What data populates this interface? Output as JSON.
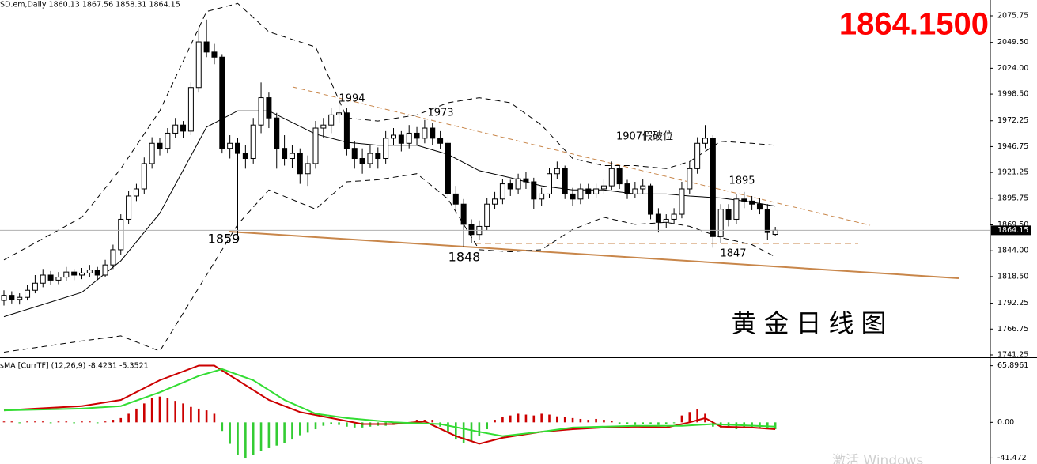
{
  "chart_data": [
    {
      "type": "candlestick",
      "header": "SD.em,Daily  1860.13 1867.56 1858.31 1864.15",
      "price_display": "1864.1500",
      "watermark": "黄金日线图",
      "last_price": 1864.15,
      "annotations": [
        "1994",
        "1973",
        "1907假破位",
        "1895",
        "1859",
        "1848",
        "1847"
      ],
      "up_color": "#ffffff",
      "down_color": "#000000",
      "ylim": [
        1738.9,
        2091.35
      ],
      "yticks": [
        2075.75,
        {
          "value": 2049.5,
          "label": "2049.50"
        },
        {
          "value": 2024,
          "label": "2024.00"
        },
        {
          "value": 1998.5,
          "label": "1998.50"
        },
        1972.25,
        1946.75,
        1921.25,
        1895.75,
        {
          "value": 1869.5,
          "label": "1869.50"
        },
        {
          "value": 1844,
          "label": "1844.00"
        },
        {
          "value": 1818.5,
          "label": "1818.50"
        },
        1792.25,
        1766.75,
        1741.25
      ],
      "ohlc": [
        [
          1795,
          1805,
          1790,
          1800
        ],
        [
          1800,
          1804,
          1792,
          1796
        ],
        [
          1796,
          1802,
          1791,
          1798
        ],
        [
          1798,
          1810,
          1795,
          1805
        ],
        [
          1805,
          1820,
          1802,
          1812
        ],
        [
          1812,
          1826,
          1808,
          1820
        ],
        [
          1820,
          1824,
          1810,
          1815
        ],
        [
          1815,
          1823,
          1811,
          1818
        ],
        [
          1818,
          1828,
          1814,
          1823
        ],
        [
          1823,
          1826,
          1815,
          1820
        ],
        [
          1820,
          1827,
          1816,
          1822
        ],
        [
          1822,
          1830,
          1818,
          1825
        ],
        [
          1825,
          1828,
          1815,
          1820
        ],
        [
          1820,
          1835,
          1818,
          1830
        ],
        [
          1830,
          1850,
          1826,
          1845
        ],
        [
          1845,
          1880,
          1840,
          1875
        ],
        [
          1875,
          1903,
          1870,
          1898
        ],
        [
          1898,
          1910,
          1893,
          1905
        ],
        [
          1905,
          1936,
          1900,
          1930
        ],
        [
          1930,
          1956,
          1925,
          1950
        ],
        [
          1950,
          1955,
          1938,
          1945
        ],
        [
          1945,
          1965,
          1940,
          1960
        ],
        [
          1960,
          1975,
          1955,
          1968
        ],
        [
          1968,
          1972,
          1955,
          1962
        ],
        [
          1962,
          2010,
          1958,
          2005
        ],
        [
          2005,
          2063,
          2000,
          2050
        ],
        [
          2050,
          2072,
          2035,
          2040
        ],
        [
          2040,
          2048,
          2028,
          2035
        ],
        [
          2035,
          2038,
          1940,
          1945
        ],
        [
          1945,
          1958,
          1935,
          1950
        ],
        [
          1950,
          1955,
          1859,
          1940
        ],
        [
          1940,
          1948,
          1925,
          1935
        ],
        [
          1935,
          1975,
          1930,
          1968
        ],
        [
          1968,
          2010,
          1960,
          1995
        ],
        [
          1995,
          2000,
          1965,
          1975
        ],
        [
          1975,
          1980,
          1925,
          1945
        ],
        [
          1945,
          1958,
          1928,
          1935
        ],
        [
          1935,
          1948,
          1926,
          1940
        ],
        [
          1940,
          1945,
          1910,
          1920
        ],
        [
          1920,
          1938,
          1908,
          1930
        ],
        [
          1930,
          1972,
          1925,
          1965
        ],
        [
          1965,
          1975,
          1955,
          1968
        ],
        [
          1968,
          1985,
          1960,
          1978
        ],
        [
          1978,
          1994,
          1970,
          1980
        ],
        [
          1980,
          1985,
          1938,
          1945
        ],
        [
          1945,
          1952,
          1925,
          1935
        ],
        [
          1935,
          1945,
          1920,
          1930
        ],
        [
          1930,
          1948,
          1926,
          1940
        ],
        [
          1940,
          1946,
          1925,
          1935
        ],
        [
          1935,
          1962,
          1930,
          1955
        ],
        [
          1955,
          1965,
          1948,
          1958
        ],
        [
          1958,
          1962,
          1942,
          1950
        ],
        [
          1950,
          1968,
          1945,
          1960
        ],
        [
          1960,
          1966,
          1948,
          1955
        ],
        [
          1955,
          1973,
          1950,
          1965
        ],
        [
          1965,
          1970,
          1948,
          1955
        ],
        [
          1955,
          1962,
          1944,
          1950
        ],
        [
          1950,
          1953,
          1895,
          1900
        ],
        [
          1900,
          1908,
          1882,
          1890
        ],
        [
          1890,
          1895,
          1848,
          1870
        ],
        [
          1870,
          1875,
          1852,
          1860
        ],
        [
          1860,
          1874,
          1855,
          1868
        ],
        [
          1868,
          1896,
          1864,
          1890
        ],
        [
          1890,
          1902,
          1885,
          1895
        ],
        [
          1895,
          1915,
          1890,
          1910
        ],
        [
          1910,
          1914,
          1898,
          1905
        ],
        [
          1905,
          1920,
          1900,
          1915
        ],
        [
          1915,
          1922,
          1905,
          1912
        ],
        [
          1912,
          1916,
          1885,
          1895
        ],
        [
          1895,
          1906,
          1888,
          1900
        ],
        [
          1900,
          1926,
          1896,
          1920
        ],
        [
          1920,
          1932,
          1915,
          1925
        ],
        [
          1925,
          1928,
          1895,
          1900
        ],
        [
          1900,
          1906,
          1888,
          1895
        ],
        [
          1895,
          1910,
          1890,
          1905
        ],
        [
          1905,
          1910,
          1895,
          1900
        ],
        [
          1900,
          1910,
          1896,
          1905
        ],
        [
          1905,
          1915,
          1900,
          1908
        ],
        [
          1908,
          1932,
          1904,
          1925
        ],
        [
          1925,
          1928,
          1905,
          1910
        ],
        [
          1910,
          1914,
          1895,
          1900
        ],
        [
          1900,
          1912,
          1896,
          1905
        ],
        [
          1905,
          1915,
          1900,
          1908
        ],
        [
          1908,
          1910,
          1875,
          1880
        ],
        [
          1880,
          1886,
          1862,
          1872
        ],
        [
          1872,
          1880,
          1866,
          1875
        ],
        [
          1875,
          1886,
          1870,
          1880
        ],
        [
          1880,
          1912,
          1876,
          1905
        ],
        [
          1905,
          1932,
          1900,
          1925
        ],
        [
          1925,
          1956,
          1920,
          1950
        ],
        [
          1950,
          1968,
          1945,
          1955
        ],
        [
          1955,
          1958,
          1847,
          1858
        ],
        [
          1858,
          1890,
          1852,
          1885
        ],
        [
          1885,
          1890,
          1868,
          1875
        ],
        [
          1875,
          1900,
          1870,
          1895
        ],
        [
          1895,
          1902,
          1886,
          1893
        ],
        [
          1893,
          1898,
          1884,
          1890
        ],
        [
          1890,
          1896,
          1880,
          1885
        ],
        [
          1885,
          1890,
          1855,
          1862
        ],
        [
          1860.13,
          1867.56,
          1858.31,
          1864.15
        ]
      ],
      "bands": [
        {
          "color": "#000000",
          "dash": true,
          "x": [
            0,
            10,
            15,
            20,
            26,
            30,
            34,
            40,
            44,
            48,
            53,
            57,
            61,
            65,
            69,
            73,
            77,
            81,
            85,
            88,
            92,
            96,
            99
          ],
          "values": [
            1835,
            1877,
            1925,
            1982,
            2080,
            2088,
            2060,
            2045,
            1975,
            1972,
            1978,
            1990,
            1995,
            1990,
            1968,
            1935,
            1928,
            1928,
            1925,
            1932,
            1952,
            1950,
            1948
          ]
        },
        {
          "color": "#000000",
          "dash": false,
          "x": [
            0,
            10,
            15,
            20,
            26,
            30,
            34,
            40,
            44,
            48,
            53,
            57,
            61,
            65,
            69,
            73,
            77,
            81,
            85,
            88,
            92,
            96,
            99
          ],
          "values": [
            1779,
            1803,
            1834,
            1881,
            1966,
            1982,
            1982,
            1959,
            1951,
            1948,
            1948,
            1939,
            1923,
            1916,
            1908,
            1904,
            1904,
            1900,
            1900,
            1898,
            1896,
            1892,
            1888
          ]
        },
        {
          "color": "#000000",
          "dash": true,
          "x": [
            0,
            10,
            15,
            20,
            26,
            30,
            34,
            40,
            44,
            48,
            53,
            57,
            61,
            65,
            69,
            73,
            77,
            81,
            85,
            88,
            92,
            96,
            99
          ],
          "values": [
            1744,
            1755,
            1760,
            1745,
            1820,
            1870,
            1904,
            1885,
            1912,
            1914,
            1920,
            1895,
            1845,
            1843,
            1845,
            1865,
            1877,
            1870,
            1872,
            1868,
            1857,
            1850,
            1838
          ]
        }
      ]
    },
    {
      "type": "macd",
      "header": "sMA [CurrTF] (12,26,9) -8.4231 -5.3521",
      "ylim": [
        -47.5,
        72
      ],
      "yticks": [
        65.8961,
        {
          "value": 0,
          "label": "0.00"
        },
        -41.472
      ],
      "up_color": "#cc0000",
      "down_color": "#33cc33",
      "histogram": [
        1,
        1,
        -1,
        1,
        1,
        1,
        -1,
        1,
        1,
        -1,
        1,
        1,
        -1,
        1,
        3,
        5,
        10,
        16,
        22,
        28,
        30,
        28,
        25,
        22,
        18,
        16,
        14,
        10,
        -10,
        -25,
        -38,
        -42,
        -38,
        -33,
        -30,
        -27,
        -24,
        -20,
        -15,
        -12,
        -8,
        -4,
        -2,
        -3,
        -5,
        -6,
        -6,
        -5,
        -4,
        -4,
        -3,
        -2,
        -1,
        3,
        3,
        3,
        -5,
        -12,
        -20,
        -24,
        -22,
        -16,
        -8,
        3,
        6,
        8,
        10,
        9,
        8,
        10,
        9,
        7,
        6,
        5,
        4,
        3,
        4,
        3,
        2,
        -2,
        -2,
        -3,
        -2,
        -2,
        -3,
        -2,
        -1,
        8,
        12,
        15,
        10,
        -5,
        -6,
        -7,
        -8,
        -7,
        -7,
        -6,
        -7,
        -8
      ],
      "series": [
        {
          "color": "#cc0000",
          "x": [
            0,
            10,
            15,
            20,
            25,
            27,
            30,
            34,
            38,
            42,
            46,
            50,
            54,
            58,
            61,
            64,
            69,
            73,
            77,
            81,
            85,
            88,
            90,
            92,
            96,
            99
          ],
          "values": [
            14,
            19,
            26,
            49,
            66,
            66,
            49,
            26,
            12,
            5,
            -2,
            -2,
            1,
            -16,
            -25,
            -18,
            -11,
            -8,
            -6,
            -5,
            -6,
            0,
            5,
            -5,
            -6,
            -8
          ]
        },
        {
          "color": "#33dd33",
          "x": [
            0,
            10,
            15,
            20,
            25,
            28,
            32,
            36,
            40,
            44,
            50,
            56,
            61,
            64,
            69,
            73,
            81,
            87,
            91,
            99
          ],
          "values": [
            14,
            16,
            19,
            35,
            54,
            62,
            49,
            26,
            10,
            5,
            0,
            -2,
            -11,
            -16,
            -11,
            -6,
            -4,
            -4,
            -2,
            -5
          ]
        }
      ]
    }
  ],
  "overlay_text": "激活 Windows"
}
